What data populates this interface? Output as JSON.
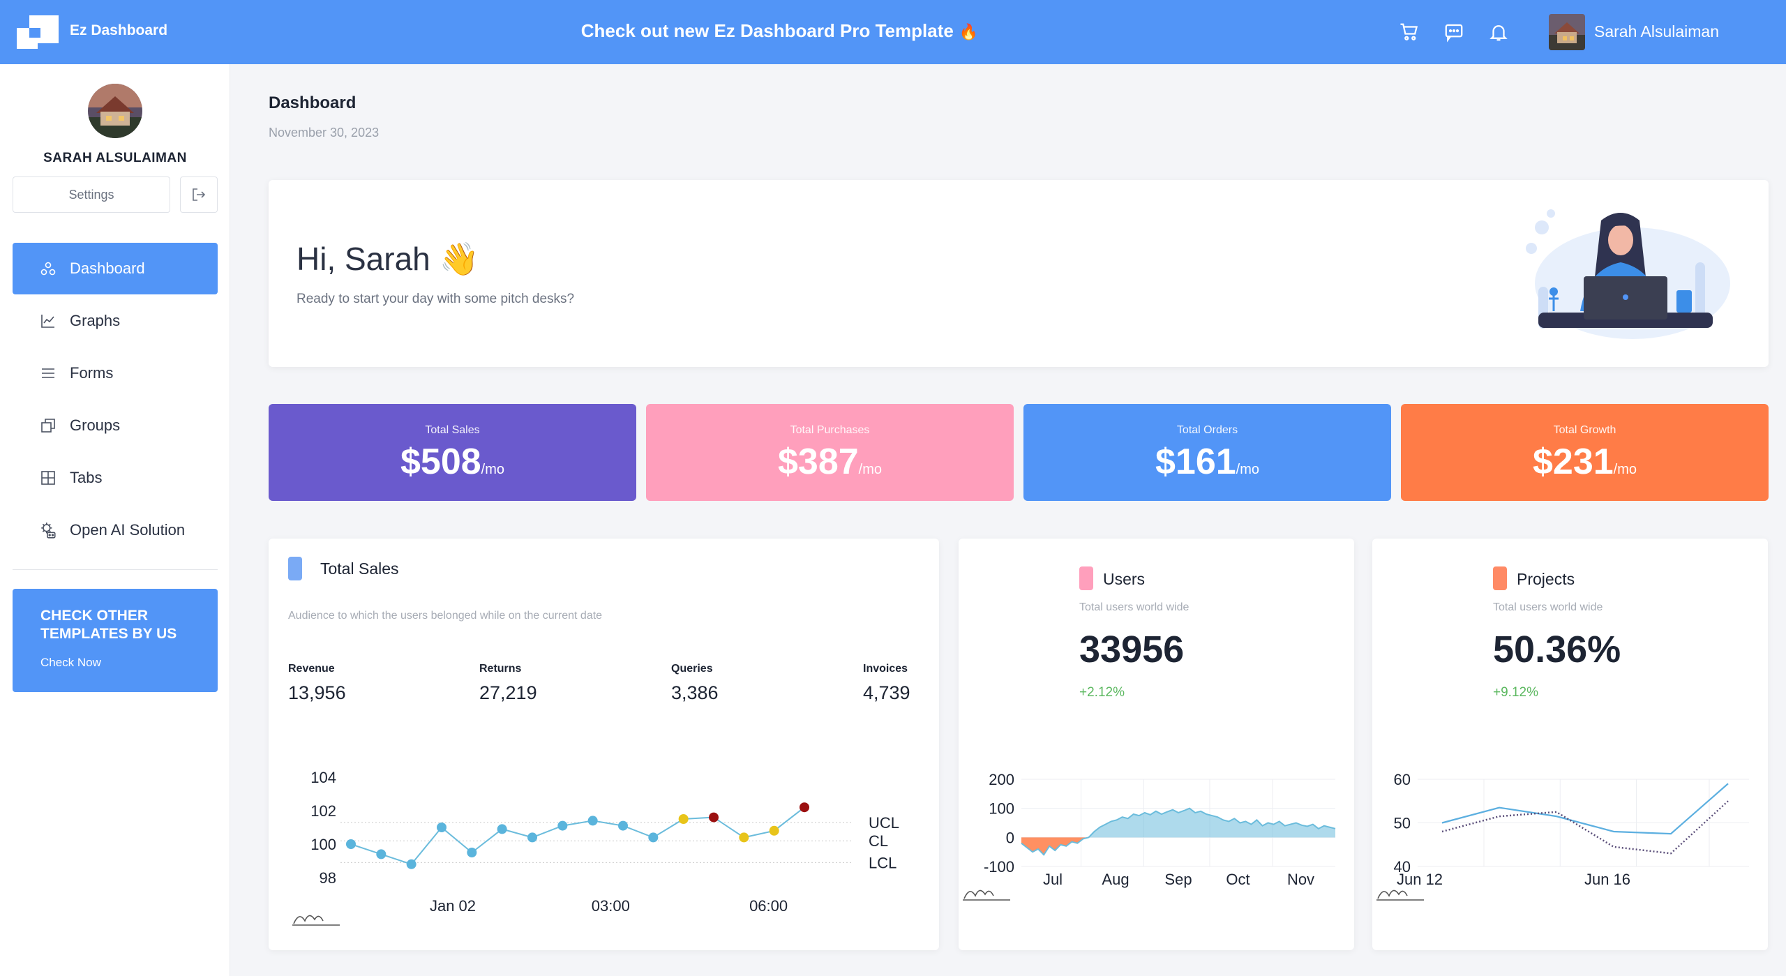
{
  "app": {
    "name": "Ez Dashboard",
    "promo": "Check out new Ez Dashboard Pro Template",
    "promo_emoji": "🔥"
  },
  "topbar": {
    "user_name": "Sarah Alsulaiman",
    "icons": [
      "cart-icon",
      "chat-icon",
      "bell-icon"
    ]
  },
  "sidebar": {
    "user_name": "SARAH ALSULAIMAN",
    "settings_label": "Settings",
    "nav": [
      {
        "label": "Dashboard",
        "icon": "dashboard-icon",
        "active": true
      },
      {
        "label": "Graphs",
        "icon": "line-chart-icon"
      },
      {
        "label": "Forms",
        "icon": "list-icon"
      },
      {
        "label": "Groups",
        "icon": "copy-icon"
      },
      {
        "label": "Tabs",
        "icon": "grid-icon"
      },
      {
        "label": "Open AI Solution",
        "icon": "robot-icon"
      }
    ],
    "promo_title": "CHECK OTHER TEMPLATES BY US",
    "promo_link": "Check Now"
  },
  "page": {
    "title": "Dashboard",
    "date": "November 30, 2023"
  },
  "welcome": {
    "greeting": "Hi, Sarah",
    "emoji": "👋",
    "subtitle": "Ready to start your day with some pitch desks?"
  },
  "stats": [
    {
      "label": "Total Sales",
      "value": "$508",
      "unit": "/mo",
      "color": "#6a5acd"
    },
    {
      "label": "Total Purchases",
      "value": "$387",
      "unit": "/mo",
      "color": "#ff9fbc"
    },
    {
      "label": "Total Orders",
      "value": "$161",
      "unit": "/mo",
      "color": "#5295f7"
    },
    {
      "label": "Total Growth",
      "value": "$231",
      "unit": "/mo",
      "color": "#ff7c47"
    }
  ],
  "total_sales": {
    "title": "Total Sales",
    "subtitle": "Audience to which the users belonged while on the current date",
    "metrics": [
      {
        "label": "Revenue",
        "value": "13,956"
      },
      {
        "label": "Returns",
        "value": "27,219"
      },
      {
        "label": "Queries",
        "value": "3,386"
      },
      {
        "label": "Invoices",
        "value": "4,739"
      }
    ]
  },
  "users": {
    "title": "Users",
    "subtitle": "Total users world wide",
    "value": "33956",
    "delta": "+2.12%"
  },
  "projects": {
    "title": "Projects",
    "subtitle": "Total users world wide",
    "value": "50.36%",
    "delta": "+9.12%"
  },
  "chart_data": [
    {
      "type": "line",
      "title": "",
      "x_ticks": [
        "Jan 02",
        "03:00",
        "06:00"
      ],
      "ylim": [
        97,
        105
      ],
      "y_ticks": [
        98,
        100,
        102,
        104
      ],
      "control_lines": {
        "UCL": 101.3,
        "CL": 100.2,
        "LCL": 98.9
      },
      "values": [
        100,
        99.4,
        98.8,
        101,
        99.5,
        100.9,
        100.4,
        101.1,
        101.4,
        101.1,
        100.4,
        101.5,
        101.6,
        100.4,
        100.8,
        102.2
      ],
      "point_status": [
        "ok",
        "ok",
        "ok",
        "ok",
        "ok",
        "ok",
        "ok",
        "ok",
        "ok",
        "ok",
        "ok",
        "warn",
        "alarm",
        "warn",
        "warn",
        "alarm"
      ],
      "colors": {
        "ok": "#5ab4dc",
        "warn": "#e8c41a",
        "alarm": "#9b1010",
        "line": "#6bbcdc"
      }
    },
    {
      "type": "area",
      "x_ticks": [
        "Jul",
        "Aug",
        "Sep",
        "Oct",
        "Nov"
      ],
      "y_ticks": [
        200,
        100,
        0,
        -100
      ],
      "ylim": [
        -100,
        200
      ],
      "values": [
        -20,
        -35,
        -50,
        -40,
        -60,
        -30,
        -45,
        -25,
        -30,
        -15,
        -20,
        -5,
        0,
        20,
        35,
        45,
        55,
        60,
        70,
        65,
        80,
        75,
        85,
        78,
        90,
        80,
        88,
        95,
        85,
        92,
        100,
        85,
        90,
        80,
        75,
        70,
        60,
        55,
        65,
        50,
        55,
        45,
        60,
        40,
        50,
        45,
        55,
        40,
        45,
        50,
        42,
        38,
        45,
        30,
        40,
        35,
        30
      ],
      "colors": {
        "negative": "#ff7c47",
        "positive": "#6bbcdc"
      }
    },
    {
      "type": "line",
      "x_ticks": [
        "Jun 12",
        "Jun 16"
      ],
      "y_ticks": [
        60,
        50,
        40
      ],
      "ylim": [
        40,
        60
      ],
      "series": [
        {
          "values": [
            50,
            53.5,
            51.5,
            48,
            47.5,
            59
          ],
          "style": "solid"
        },
        {
          "values": [
            48,
            51.5,
            52.5,
            44.5,
            43,
            55
          ],
          "style": "dotted"
        }
      ]
    }
  ]
}
